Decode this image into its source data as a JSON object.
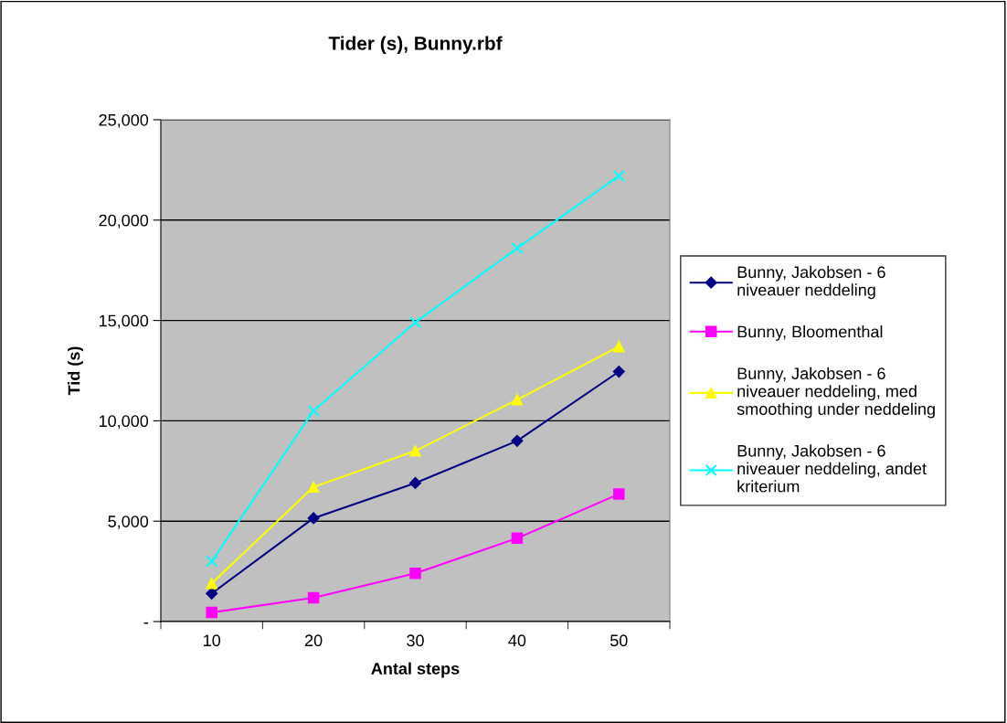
{
  "chart_data": {
    "type": "line",
    "title": "Tider (s), Bunny.rbf",
    "xlabel": "Antal steps",
    "ylabel": "Tid (s)",
    "categories": [
      "10",
      "20",
      "30",
      "40",
      "50"
    ],
    "series": [
      {
        "name": "Bunny, Jakobsen - 6 niveauer neddeling",
        "color": "#000080",
        "marker": "diamond",
        "values": [
          1400,
          5150,
          6900,
          9000,
          12450
        ]
      },
      {
        "name": "Bunny, Bloomenthal",
        "color": "#ff00ff",
        "marker": "square",
        "values": [
          450,
          1180,
          2400,
          4150,
          6350
        ]
      },
      {
        "name": "Bunny, Jakobsen - 6 niveauer neddeling, med smoothing under neddeling",
        "color": "#ffff00",
        "marker": "triangle",
        "values": [
          1900,
          6700,
          8500,
          11050,
          13700
        ]
      },
      {
        "name": "Bunny, Jakobsen - 6 niveauer neddeling, andet kriterium",
        "color": "#00ffff",
        "marker": "cross",
        "values": [
          3000,
          10500,
          14900,
          18600,
          22200
        ]
      }
    ],
    "ylim": [
      0,
      25000
    ],
    "yticks": [
      {
        "value": 0,
        "label": "-"
      },
      {
        "value": 5000,
        "label": "5,000"
      },
      {
        "value": 10000,
        "label": "10,000"
      },
      {
        "value": 15000,
        "label": "15,000"
      },
      {
        "value": 20000,
        "label": "20,000"
      },
      {
        "value": 25000,
        "label": "25,000"
      }
    ],
    "grid": "y",
    "legend": "right",
    "line_style": "solid"
  }
}
